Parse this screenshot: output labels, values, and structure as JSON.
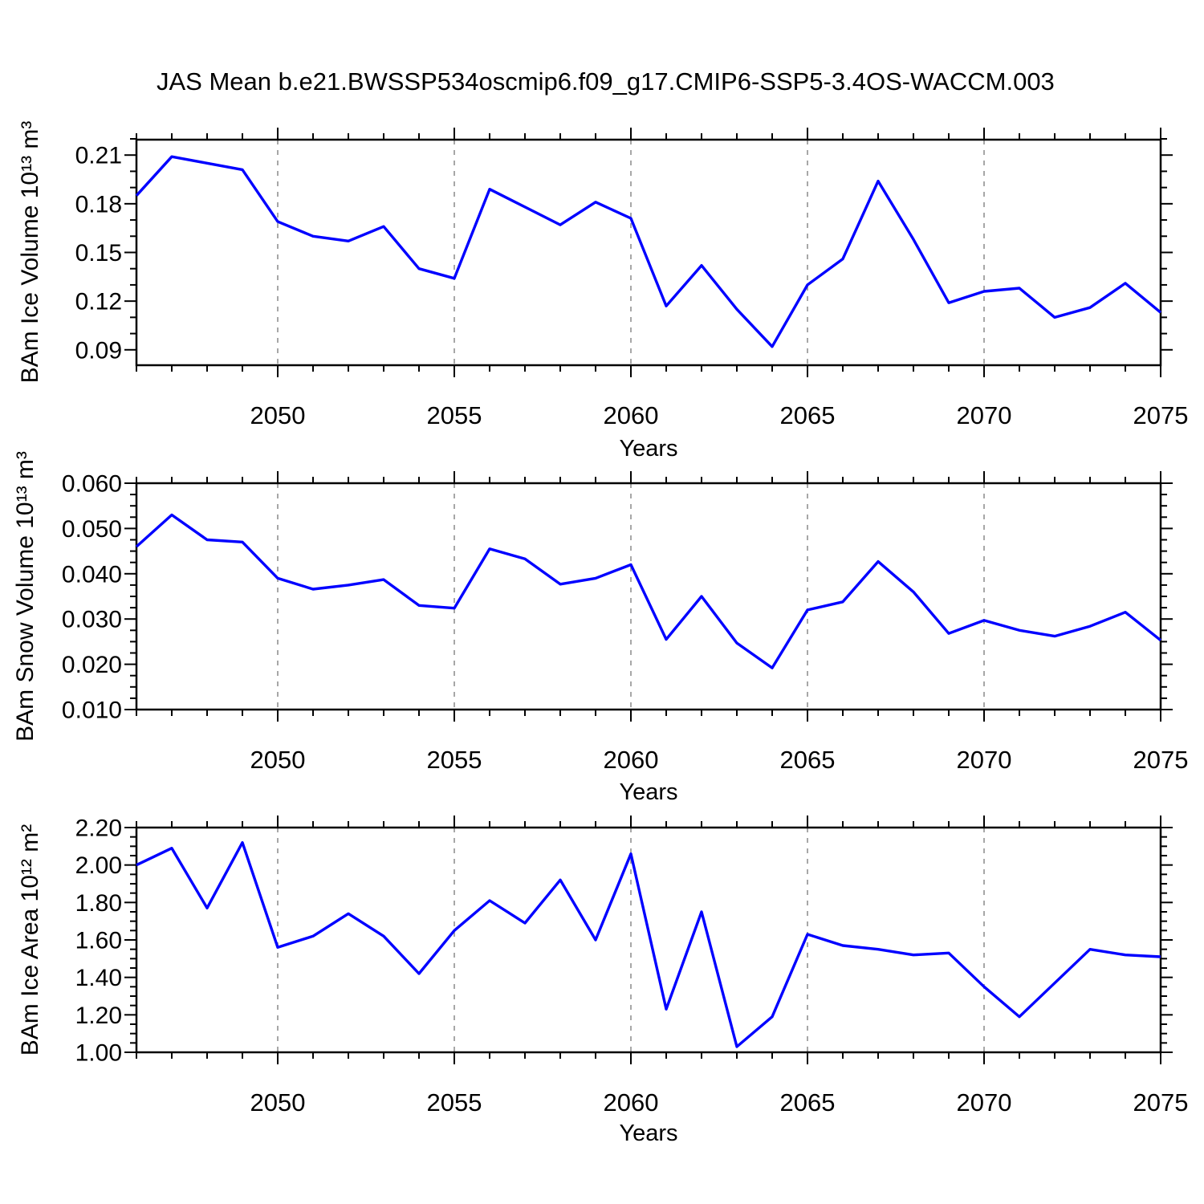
{
  "title": "JAS Mean b.e21.BWSSP534oscmip6.f09_g17.CMIP6-SSP5-3.4OS-WACCM.003",
  "colors": {
    "line": "#0000ff",
    "axis": "#000000",
    "grid": "#8a8a8a"
  },
  "chart_data": [
    {
      "type": "line",
      "name": "bam-ice-volume",
      "ylabel": "BAm Ice Volume 10¹³ m³",
      "xlabel": "Years",
      "x": [
        2046,
        2047,
        2048,
        2049,
        2050,
        2051,
        2052,
        2053,
        2054,
        2055,
        2056,
        2057,
        2058,
        2059,
        2060,
        2061,
        2062,
        2063,
        2064,
        2065,
        2066,
        2067,
        2068,
        2069,
        2070,
        2071,
        2072,
        2073,
        2074,
        2075
      ],
      "values": [
        0.185,
        0.209,
        0.205,
        0.201,
        0.169,
        0.16,
        0.157,
        0.166,
        0.14,
        0.134,
        0.189,
        0.178,
        0.167,
        0.181,
        0.171,
        0.117,
        0.142,
        0.115,
        0.092,
        0.13,
        0.146,
        0.194,
        0.158,
        0.119,
        0.126,
        0.128,
        0.11,
        0.116,
        0.131,
        0.113
      ],
      "ylim": [
        0.0805,
        0.2195
      ],
      "ytick_values": [
        0.21,
        0.18,
        0.15,
        0.12,
        0.09
      ],
      "ytick_labels": [
        "0.21",
        "0.18",
        "0.15",
        "0.12",
        "0.09"
      ],
      "y_minor_step": 0.01,
      "xlim": [
        2046,
        2075
      ],
      "xtick_values": [
        2050,
        2055,
        2060,
        2065,
        2070,
        2075
      ],
      "xtick_labels": [
        "2050",
        "2055",
        "2060",
        "2065",
        "2070",
        "2075"
      ],
      "x_minor_step": 1,
      "grid_x": [
        2050,
        2055,
        2060,
        2065,
        2070
      ],
      "grid": "vertical-dashed",
      "legend": "none"
    },
    {
      "type": "line",
      "name": "bam-snow-volume",
      "ylabel": "BAm Snow Volume 10¹³ m³",
      "xlabel": "Years",
      "x": [
        2046,
        2047,
        2048,
        2049,
        2050,
        2051,
        2052,
        2053,
        2054,
        2055,
        2056,
        2057,
        2058,
        2059,
        2060,
        2061,
        2062,
        2063,
        2064,
        2065,
        2066,
        2067,
        2068,
        2069,
        2070,
        2071,
        2072,
        2073,
        2074,
        2075
      ],
      "values": [
        0.046,
        0.053,
        0.0475,
        0.047,
        0.039,
        0.0366,
        0.0375,
        0.0387,
        0.033,
        0.0324,
        0.0455,
        0.0433,
        0.0377,
        0.039,
        0.042,
        0.0255,
        0.035,
        0.0247,
        0.0192,
        0.032,
        0.0338,
        0.0427,
        0.036,
        0.0268,
        0.0297,
        0.0275,
        0.0262,
        0.0284,
        0.0315,
        0.0253
      ],
      "ylim": [
        0.01,
        0.06
      ],
      "ytick_values": [
        0.06,
        0.05,
        0.04,
        0.03,
        0.02,
        0.01
      ],
      "ytick_labels": [
        "0.060",
        "0.050",
        "0.040",
        "0.030",
        "0.020",
        "0.010"
      ],
      "y_minor_step": 0.0025,
      "xlim": [
        2046,
        2075
      ],
      "xtick_values": [
        2050,
        2055,
        2060,
        2065,
        2070,
        2075
      ],
      "xtick_labels": [
        "2050",
        "2055",
        "2060",
        "2065",
        "2070",
        "2075"
      ],
      "x_minor_step": 1,
      "grid_x": [
        2050,
        2055,
        2060,
        2065,
        2070
      ],
      "grid": "vertical-dashed",
      "legend": "none"
    },
    {
      "type": "line",
      "name": "bam-ice-area",
      "ylabel": "BAm Ice Area 10¹² m²",
      "xlabel": "Years",
      "x": [
        2046,
        2047,
        2048,
        2049,
        2050,
        2051,
        2052,
        2053,
        2054,
        2055,
        2056,
        2057,
        2058,
        2059,
        2060,
        2061,
        2062,
        2063,
        2064,
        2065,
        2066,
        2067,
        2068,
        2069,
        2070,
        2071,
        2072,
        2073,
        2074,
        2075
      ],
      "values": [
        2.0,
        2.09,
        1.77,
        2.12,
        1.56,
        1.62,
        1.74,
        1.62,
        1.42,
        1.65,
        1.81,
        1.69,
        1.92,
        1.6,
        2.06,
        1.23,
        1.75,
        1.03,
        1.19,
        1.63,
        1.57,
        1.55,
        1.52,
        1.53,
        1.35,
        1.19,
        1.37,
        1.55,
        1.52,
        1.51
      ],
      "ylim": [
        1.0,
        2.2
      ],
      "ytick_values": [
        2.2,
        2.0,
        1.8,
        1.6,
        1.4,
        1.2,
        1.0
      ],
      "ytick_labels": [
        "2.20",
        "2.00",
        "1.80",
        "1.60",
        "1.40",
        "1.20",
        "1.00"
      ],
      "y_minor_step": 0.05,
      "xlim": [
        2046,
        2075
      ],
      "xtick_values": [
        2050,
        2055,
        2060,
        2065,
        2070,
        2075
      ],
      "xtick_labels": [
        "2050",
        "2055",
        "2060",
        "2065",
        "2070",
        "2075"
      ],
      "x_minor_step": 1,
      "grid_x": [
        2050,
        2055,
        2060,
        2065,
        2070
      ],
      "grid": "vertical-dashed",
      "legend": "none"
    }
  ]
}
